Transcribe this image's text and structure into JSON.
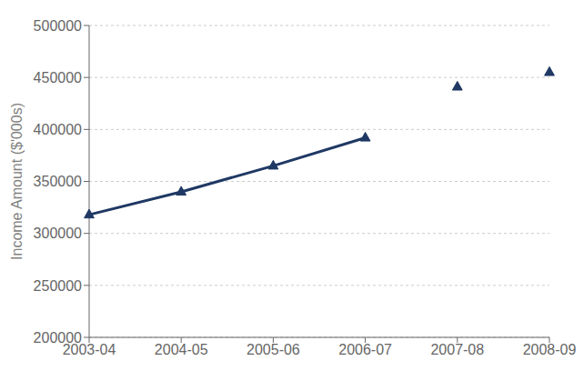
{
  "chart_data": {
    "type": "line",
    "categories": [
      "2003-04",
      "2004-05",
      "2005-06",
      "2006-07",
      "2007-08",
      "2008-09"
    ],
    "series": [
      {
        "color": "#1F3864",
        "marker": "triangle",
        "line_style": "solid",
        "values": [
          318000,
          340000,
          365000,
          392000,
          null,
          null
        ]
      },
      {
        "color": "#1F3864",
        "marker": "triangle",
        "line_style": "none",
        "values": [
          null,
          null,
          null,
          null,
          441000,
          455000
        ]
      }
    ],
    "ylabel": "Income Amount ($'000s)",
    "ylim": [
      200000,
      500000
    ],
    "yticks": [
      200000,
      250000,
      300000,
      350000,
      400000,
      450000,
      500000
    ],
    "grid": true
  }
}
